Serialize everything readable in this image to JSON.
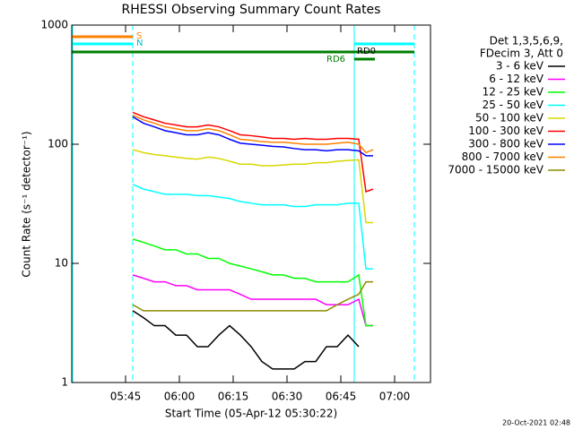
{
  "chart_data": {
    "type": "line",
    "title": "RHESSI Observing Summary Count Rates",
    "x_label": "Start Time (05-Apr-12 05:30:22)",
    "y_label": "Count Rate (s⁻¹ detector⁻¹)",
    "legend_header": [
      "Det 1,3,5,6,9,",
      "FDecim 3, Att 0"
    ],
    "footer": "20-Oct-2021 02:48",
    "annotations": [
      "S",
      "N",
      "RD6",
      "RD0"
    ],
    "log_y": true,
    "xlim": [
      "05:30",
      "07:10"
    ],
    "xticks": [
      "05:45",
      "06:00",
      "06:15",
      "06:30",
      "06:45",
      "07:00"
    ],
    "ylim": [
      1,
      1000
    ],
    "yticks": [
      1,
      10,
      100,
      1000
    ],
    "x": [
      "05:47",
      "05:50",
      "05:53",
      "05:56",
      "05:59",
      "06:02",
      "06:05",
      "06:08",
      "06:11",
      "06:14",
      "06:17",
      "06:20",
      "06:23",
      "06:26",
      "06:29",
      "06:32",
      "06:35",
      "06:38",
      "06:41",
      "06:44",
      "06:47",
      "06:50",
      "06:52",
      "06:54"
    ],
    "series": [
      {
        "name": "3 - 6 keV",
        "color": "#000000",
        "values": [
          4,
          3.5,
          3,
          3,
          2.5,
          2.5,
          2,
          2,
          2.5,
          3,
          2.5,
          2,
          1.5,
          1.3,
          1.3,
          1.3,
          1.5,
          1.5,
          2,
          2,
          2.5,
          2,
          null,
          null
        ]
      },
      {
        "name": "6 - 12 keV",
        "color": "#ff00ff",
        "values": [
          8,
          7.5,
          7,
          7,
          6.5,
          6.5,
          6,
          6,
          6,
          6,
          5.5,
          5,
          5,
          5,
          5,
          5,
          5,
          5,
          4.5,
          4.5,
          4.5,
          5,
          3,
          3
        ]
      },
      {
        "name": "12 - 25 keV",
        "color": "#00ff00",
        "values": [
          16,
          15,
          14,
          13,
          13,
          12,
          12,
          11,
          11,
          10,
          9.5,
          9,
          8.5,
          8,
          8,
          7.5,
          7.5,
          7,
          7,
          7,
          7,
          8,
          3,
          3
        ]
      },
      {
        "name": "25 - 50 keV",
        "color": "#00ffff",
        "values": [
          46,
          42,
          40,
          38,
          38,
          38,
          37,
          37,
          36,
          35,
          33,
          32,
          31,
          31,
          31,
          30,
          30,
          31,
          31,
          31,
          32,
          32,
          9,
          9
        ]
      },
      {
        "name": "50 - 100 keV",
        "color": "#d8d800",
        "values": [
          90,
          85,
          82,
          80,
          78,
          76,
          75,
          78,
          76,
          72,
          68,
          68,
          66,
          66,
          67,
          68,
          68,
          70,
          70,
          72,
          73,
          74,
          22,
          22
        ]
      },
      {
        "name": "100 - 300 keV",
        "color": "#ff0000",
        "values": [
          185,
          170,
          160,
          150,
          145,
          140,
          140,
          145,
          140,
          130,
          120,
          118,
          115,
          112,
          112,
          110,
          112,
          110,
          110,
          112,
          112,
          110,
          40,
          42
        ]
      },
      {
        "name": "300 - 800 keV",
        "color": "#0000ff",
        "values": [
          170,
          150,
          140,
          130,
          125,
          120,
          120,
          125,
          120,
          110,
          102,
          100,
          98,
          96,
          95,
          92,
          90,
          90,
          88,
          90,
          90,
          88,
          80,
          80
        ]
      },
      {
        "name": "800 - 7000 keV",
        "color": "#ff8000",
        "values": [
          175,
          160,
          150,
          140,
          135,
          130,
          130,
          135,
          130,
          120,
          110,
          108,
          105,
          104,
          104,
          102,
          100,
          100,
          100,
          102,
          104,
          100,
          85,
          90
        ]
      },
      {
        "name": "7000 - 15000 keV",
        "color": "#8b8b00",
        "values": [
          4.5,
          4,
          4,
          4,
          4,
          4,
          4,
          4,
          4,
          4,
          4,
          4,
          4,
          4,
          4,
          4,
          4,
          4,
          4,
          4.5,
          5,
          5.5,
          7,
          7
        ]
      }
    ]
  }
}
